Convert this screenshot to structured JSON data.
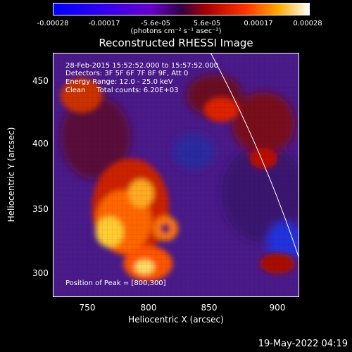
{
  "colorbar": {
    "ticks": [
      "-0.00028",
      "-0.00017",
      "-5.6e-05",
      "5.6e-05",
      "0.00017",
      "0.00028"
    ],
    "unit_label": "(photons cm⁻² s⁻¹ asec⁻²)"
  },
  "title": "Reconstructed RHESSI Image",
  "info": {
    "time_range": "28-Feb-2015 15:52:52.000 to 15:57:52.000",
    "detectors": "Detectors: 3F 5F 6F 7F 8F 9F, Att 0",
    "energy": "Energy Range: 12.0 - 25.0 keV",
    "method": "Clean     Total counts: 6.20E+03",
    "peak": "Position of Peak = [800,300]"
  },
  "axes": {
    "xlabel": "Heliocentric X (arcsec)",
    "ylabel": "Heliocentric Y (arcsec)",
    "xticks": [
      "750",
      "800",
      "850",
      "900"
    ],
    "yticks": [
      "450",
      "400",
      "350",
      "300"
    ]
  },
  "timestamp": "19-May-2022 04:19"
}
